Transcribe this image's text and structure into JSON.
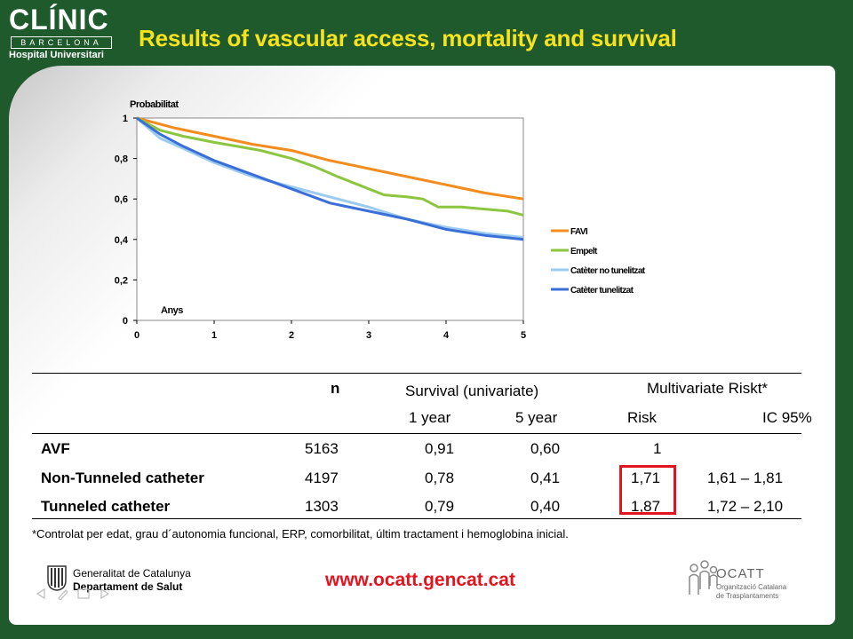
{
  "header": {
    "logo_main": "CLÍNIC",
    "logo_city": "BARCELONA",
    "logo_sub": "Hospital Universitari",
    "title": "Results of vascular access, mortality and survival"
  },
  "colors": {
    "background": "#1f5a2c",
    "title": "#f7e21e",
    "url": "#e3141e",
    "highlight": "#e3141e"
  },
  "chart_data": {
    "type": "line",
    "ylabel": "Probabilitat",
    "xlabel": "Anys",
    "xlim": [
      0,
      5
    ],
    "ylim": [
      0,
      1
    ],
    "x_ticks": [
      "0",
      "1",
      "2",
      "3",
      "4",
      "5"
    ],
    "y_ticks": [
      "0",
      "0,2",
      "0,4",
      "0,6",
      "0,8",
      "1"
    ],
    "legend_position": "right",
    "series": [
      {
        "name": "FAVI",
        "color": "#f28c1e",
        "points": [
          [
            0,
            1
          ],
          [
            0.5,
            0.95
          ],
          [
            1,
            0.91
          ],
          [
            1.5,
            0.87
          ],
          [
            2,
            0.84
          ],
          [
            2.5,
            0.79
          ],
          [
            3,
            0.75
          ],
          [
            3.5,
            0.71
          ],
          [
            4,
            0.67
          ],
          [
            4.5,
            0.63
          ],
          [
            5,
            0.6
          ]
        ]
      },
      {
        "name": "Empelt",
        "color": "#8cc63f",
        "points": [
          [
            0,
            1
          ],
          [
            0.3,
            0.94
          ],
          [
            0.6,
            0.91
          ],
          [
            1,
            0.88
          ],
          [
            1.3,
            0.86
          ],
          [
            1.6,
            0.84
          ],
          [
            2,
            0.8
          ],
          [
            2.3,
            0.76
          ],
          [
            2.6,
            0.71
          ],
          [
            3,
            0.65
          ],
          [
            3.2,
            0.62
          ],
          [
            3.5,
            0.61
          ],
          [
            3.7,
            0.6
          ],
          [
            3.9,
            0.56
          ],
          [
            4.2,
            0.56
          ],
          [
            4.5,
            0.55
          ],
          [
            4.8,
            0.54
          ],
          [
            5,
            0.52
          ]
        ]
      },
      {
        "name": "Catèter no tunelitzat",
        "color": "#9ccbf0",
        "points": [
          [
            0,
            1
          ],
          [
            0.3,
            0.9
          ],
          [
            0.6,
            0.85
          ],
          [
            1,
            0.78
          ],
          [
            1.5,
            0.71
          ],
          [
            2,
            0.66
          ],
          [
            2.5,
            0.61
          ],
          [
            3,
            0.56
          ],
          [
            3.5,
            0.5
          ],
          [
            4,
            0.46
          ],
          [
            4.5,
            0.43
          ],
          [
            5,
            0.41
          ]
        ]
      },
      {
        "name": "Catèter tunelitzat",
        "color": "#3a6fd8",
        "points": [
          [
            0,
            1
          ],
          [
            0.3,
            0.92
          ],
          [
            0.6,
            0.86
          ],
          [
            1,
            0.79
          ],
          [
            1.5,
            0.72
          ],
          [
            2,
            0.65
          ],
          [
            2.5,
            0.58
          ],
          [
            3,
            0.54
          ],
          [
            3.5,
            0.5
          ],
          [
            4,
            0.45
          ],
          [
            4.5,
            0.42
          ],
          [
            5,
            0.4
          ]
        ]
      }
    ]
  },
  "table": {
    "col_n": "n",
    "col_survival": "Survival (univariate)",
    "col_multivariate": "Multivariate Riskt*",
    "sub_1year": "1 year",
    "sub_5year": "5 year",
    "sub_risk": "Risk",
    "sub_ic": "IC 95%",
    "rows": [
      {
        "label": "AVF",
        "n": "5163",
        "y1": "0,91",
        "y5": "0,60",
        "risk": "1",
        "ic": ""
      },
      {
        "label": "Non-Tunneled catheter",
        "n": "4197",
        "y1": "0,78",
        "y5": "0,41",
        "risk": "1,71",
        "ic": "1,61 – 1,81"
      },
      {
        "label": "Tunneled catheter",
        "n": "1303",
        "y1": "0,79",
        "y5": "0,40",
        "risk": "1,87",
        "ic": "1,72 – 2,10"
      }
    ]
  },
  "footnote": "*Controlat per edat, grau d´autonomia funcional, ERP, comorbilitat, últim tractament i hemoglobina inicial.",
  "footer": {
    "gencat_line1": "Generalitat de Catalunya",
    "gencat_line2": "Departament de Salut",
    "url": "www.ocatt.gencat.cat",
    "ocatt_name": "OCATT",
    "ocatt_sub1": "Organització Catalana",
    "ocatt_sub2": "de Trasplantaments"
  }
}
